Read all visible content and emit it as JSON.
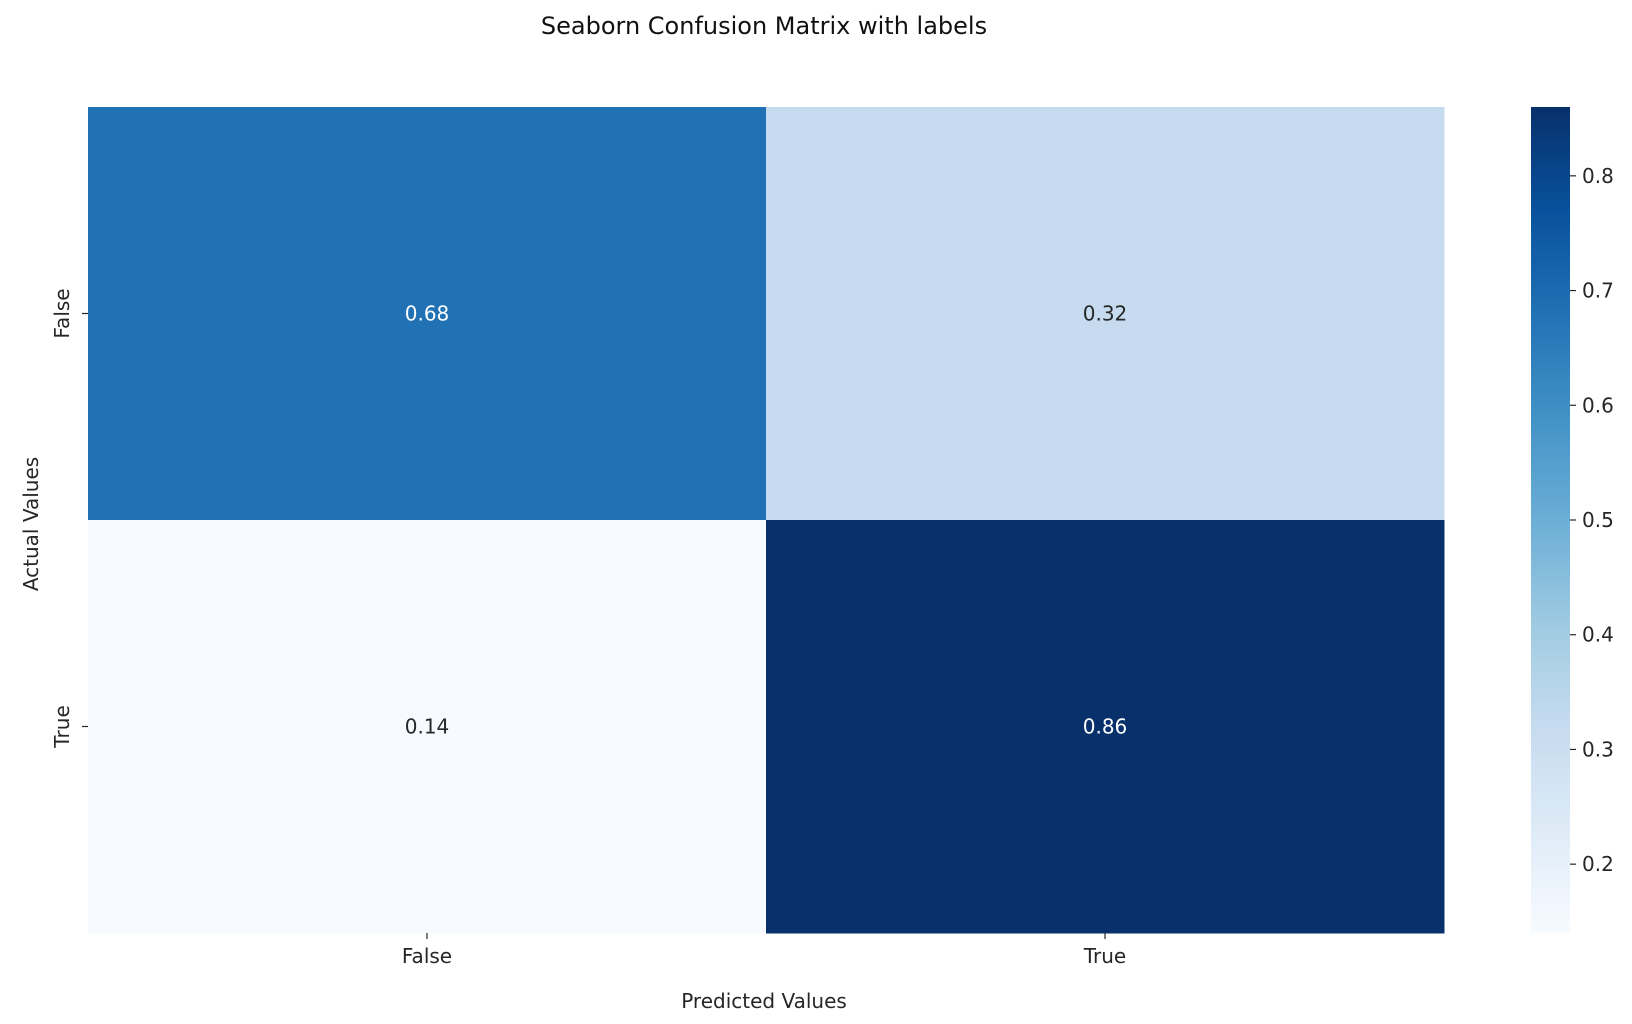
{
  "chart_data": {
    "type": "heatmap",
    "title": "Seaborn Confusion Matrix with labels",
    "xlabel": "Predicted Values",
    "ylabel": "Actual Values",
    "x_categories": [
      "False",
      "True"
    ],
    "y_categories": [
      "False",
      "True"
    ],
    "values": [
      [
        0.68,
        0.32
      ],
      [
        0.14,
        0.86
      ]
    ],
    "annotations": [
      [
        "0.68",
        "0.32"
      ],
      [
        "0.14",
        "0.86"
      ]
    ],
    "colormap": "Blues",
    "vmin": 0.14,
    "vmax": 0.86,
    "colorbar": {
      "ticks": [
        0.2,
        0.3,
        0.4,
        0.5,
        0.6,
        0.7,
        0.8
      ],
      "tick_labels": [
        "0.2",
        "0.3",
        "0.4",
        "0.5",
        "0.6",
        "0.7",
        "0.8"
      ]
    },
    "grid": false
  }
}
